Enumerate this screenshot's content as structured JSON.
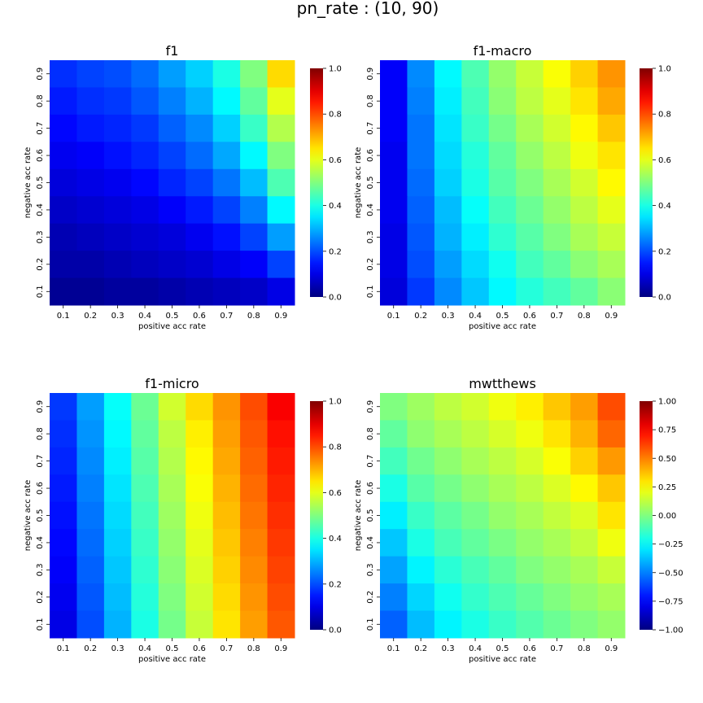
{
  "figure": {
    "suptitle": "pn_rate : (10, 90)"
  },
  "chart_data": [
    {
      "type": "heatmap",
      "title": "f1",
      "xlabel": "positive acc rate",
      "ylabel": "negative acc rate",
      "x_categories": [
        "0.1",
        "0.2",
        "0.3",
        "0.4",
        "0.5",
        "0.6",
        "0.7",
        "0.8",
        "0.9"
      ],
      "y_categories": [
        "0.9",
        "0.8",
        "0.7",
        "0.6",
        "0.5",
        "0.4",
        "0.3",
        "0.2",
        "0.1"
      ],
      "vmin": 0.0,
      "vmax": 1.0,
      "colorbar_ticks": [
        "0.0",
        "0.2",
        "0.4",
        "0.6",
        "0.8",
        "1.0"
      ],
      "colormap": "jet",
      "values": [
        [
          0.17,
          0.19,
          0.2,
          0.23,
          0.28,
          0.33,
          0.4,
          0.5,
          0.66
        ],
        [
          0.15,
          0.17,
          0.18,
          0.21,
          0.25,
          0.3,
          0.37,
          0.47,
          0.6
        ],
        [
          0.13,
          0.15,
          0.16,
          0.18,
          0.22,
          0.26,
          0.33,
          0.43,
          0.55
        ],
        [
          0.11,
          0.12,
          0.14,
          0.16,
          0.19,
          0.23,
          0.29,
          0.37,
          0.5
        ],
        [
          0.09,
          0.1,
          0.11,
          0.13,
          0.16,
          0.19,
          0.24,
          0.31,
          0.45
        ],
        [
          0.07,
          0.08,
          0.09,
          0.1,
          0.12,
          0.15,
          0.19,
          0.25,
          0.37
        ],
        [
          0.05,
          0.06,
          0.07,
          0.08,
          0.09,
          0.11,
          0.14,
          0.19,
          0.28
        ],
        [
          0.04,
          0.04,
          0.05,
          0.06,
          0.07,
          0.08,
          0.1,
          0.12,
          0.19
        ],
        [
          0.02,
          0.02,
          0.03,
          0.03,
          0.04,
          0.05,
          0.06,
          0.07,
          0.1
        ]
      ]
    },
    {
      "type": "heatmap",
      "title": "f1-macro",
      "xlabel": "positive acc rate",
      "ylabel": "negative acc rate",
      "x_categories": [
        "0.1",
        "0.2",
        "0.3",
        "0.4",
        "0.5",
        "0.6",
        "0.7",
        "0.8",
        "0.9"
      ],
      "y_categories": [
        "0.9",
        "0.8",
        "0.7",
        "0.6",
        "0.5",
        "0.4",
        "0.3",
        "0.2",
        "0.1"
      ],
      "vmin": 0.0,
      "vmax": 1.0,
      "colorbar_ticks": [
        "0.0",
        "0.2",
        "0.4",
        "0.6",
        "0.8",
        "1.0"
      ],
      "colormap": "jet",
      "values": [
        [
          0.12,
          0.26,
          0.37,
          0.45,
          0.52,
          0.57,
          0.62,
          0.67,
          0.73
        ],
        [
          0.12,
          0.25,
          0.36,
          0.44,
          0.51,
          0.56,
          0.6,
          0.65,
          0.71
        ],
        [
          0.12,
          0.24,
          0.35,
          0.43,
          0.49,
          0.54,
          0.58,
          0.63,
          0.68
        ],
        [
          0.11,
          0.24,
          0.34,
          0.41,
          0.47,
          0.52,
          0.56,
          0.61,
          0.65
        ],
        [
          0.11,
          0.23,
          0.33,
          0.4,
          0.46,
          0.5,
          0.54,
          0.58,
          0.63
        ],
        [
          0.11,
          0.22,
          0.31,
          0.38,
          0.44,
          0.48,
          0.52,
          0.56,
          0.6
        ],
        [
          0.1,
          0.21,
          0.3,
          0.36,
          0.42,
          0.46,
          0.5,
          0.54,
          0.57
        ],
        [
          0.1,
          0.2,
          0.28,
          0.34,
          0.39,
          0.44,
          0.47,
          0.51,
          0.54
        ],
        [
          0.09,
          0.18,
          0.26,
          0.32,
          0.37,
          0.41,
          0.44,
          0.47,
          0.51
        ]
      ]
    },
    {
      "type": "heatmap",
      "title": "f1-micro",
      "xlabel": "positive acc rate",
      "ylabel": "negative acc rate",
      "x_categories": [
        "0.1",
        "0.2",
        "0.3",
        "0.4",
        "0.5",
        "0.6",
        "0.7",
        "0.8",
        "0.9"
      ],
      "y_categories": [
        "0.9",
        "0.8",
        "0.7",
        "0.6",
        "0.5",
        "0.4",
        "0.3",
        "0.2",
        "0.1"
      ],
      "vmin": 0.0,
      "vmax": 1.0,
      "colorbar_ticks": [
        "0.0",
        "0.2",
        "0.4",
        "0.6",
        "0.8",
        "1.0"
      ],
      "colormap": "jet",
      "values": [
        [
          0.18,
          0.28,
          0.38,
          0.48,
          0.58,
          0.66,
          0.73,
          0.8,
          0.88
        ],
        [
          0.17,
          0.27,
          0.37,
          0.47,
          0.56,
          0.64,
          0.72,
          0.79,
          0.86
        ],
        [
          0.16,
          0.26,
          0.36,
          0.46,
          0.55,
          0.63,
          0.71,
          0.78,
          0.85
        ],
        [
          0.15,
          0.25,
          0.35,
          0.45,
          0.54,
          0.62,
          0.7,
          0.77,
          0.84
        ],
        [
          0.14,
          0.24,
          0.34,
          0.44,
          0.53,
          0.61,
          0.69,
          0.76,
          0.83
        ],
        [
          0.13,
          0.23,
          0.33,
          0.43,
          0.52,
          0.6,
          0.68,
          0.75,
          0.82
        ],
        [
          0.12,
          0.22,
          0.32,
          0.42,
          0.51,
          0.59,
          0.67,
          0.74,
          0.81
        ],
        [
          0.11,
          0.21,
          0.31,
          0.41,
          0.5,
          0.58,
          0.66,
          0.73,
          0.8
        ],
        [
          0.1,
          0.2,
          0.3,
          0.4,
          0.49,
          0.57,
          0.65,
          0.72,
          0.79
        ]
      ]
    },
    {
      "type": "heatmap",
      "title": "mwtthews",
      "xlabel": "positive acc rate",
      "ylabel": "negative acc rate",
      "x_categories": [
        "0.1",
        "0.2",
        "0.3",
        "0.4",
        "0.5",
        "0.6",
        "0.7",
        "0.8",
        "0.9"
      ],
      "y_categories": [
        "0.9",
        "0.8",
        "0.7",
        "0.6",
        "0.5",
        "0.4",
        "0.3",
        "0.2",
        "0.1"
      ],
      "vmin": -1.0,
      "vmax": 1.0,
      "colorbar_ticks": [
        "−1.00",
        "−0.75",
        "−0.50",
        "−0.25",
        "0.00",
        "0.25",
        "0.50",
        "0.75",
        "1.00"
      ],
      "colormap": "jet",
      "values": [
        [
          0.0,
          0.06,
          0.12,
          0.16,
          0.22,
          0.28,
          0.36,
          0.44,
          0.6
        ],
        [
          -0.06,
          0.03,
          0.08,
          0.12,
          0.17,
          0.22,
          0.3,
          0.4,
          0.55
        ],
        [
          -0.12,
          -0.03,
          0.03,
          0.08,
          0.12,
          0.17,
          0.24,
          0.34,
          0.45
        ],
        [
          -0.2,
          -0.08,
          -0.02,
          0.03,
          0.08,
          0.12,
          0.18,
          0.26,
          0.36
        ],
        [
          -0.28,
          -0.14,
          -0.07,
          -0.02,
          0.04,
          0.08,
          0.13,
          0.18,
          0.3
        ],
        [
          -0.36,
          -0.2,
          -0.11,
          -0.06,
          -0.01,
          0.04,
          0.08,
          0.13,
          0.22
        ],
        [
          -0.43,
          -0.27,
          -0.17,
          -0.11,
          -0.06,
          0.0,
          0.04,
          0.08,
          0.14
        ],
        [
          -0.5,
          -0.33,
          -0.22,
          -0.15,
          -0.1,
          -0.05,
          0.0,
          0.04,
          0.08
        ],
        [
          -0.56,
          -0.38,
          -0.27,
          -0.2,
          -0.14,
          -0.09,
          -0.04,
          0.0,
          0.04
        ]
      ]
    }
  ]
}
